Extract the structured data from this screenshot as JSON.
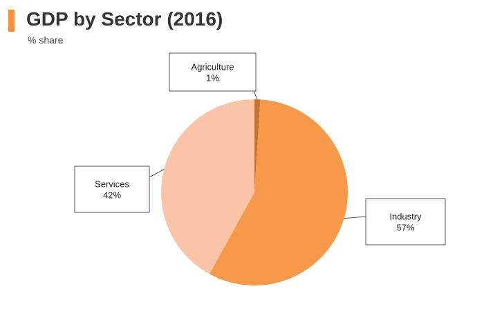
{
  "header": {
    "title": "GDP by Sector (2016)",
    "subtitle": "% share"
  },
  "chart_data": {
    "type": "pie",
    "title": "GDP by Sector (2016)",
    "subtitle": "% share",
    "slices": [
      {
        "name": "Agriculture",
        "value": 1,
        "label": "1%",
        "color": "#c8722a"
      },
      {
        "name": "Industry",
        "value": 57,
        "label": "57%",
        "color": "#f7994a"
      },
      {
        "name": "Services",
        "value": 42,
        "label": "42%",
        "color": "#f9c4a8"
      }
    ],
    "start_angle_deg": 0,
    "direction": "clockwise",
    "legend": "none"
  },
  "colors": {
    "accent": "#f7923a",
    "title": "#333333"
  }
}
